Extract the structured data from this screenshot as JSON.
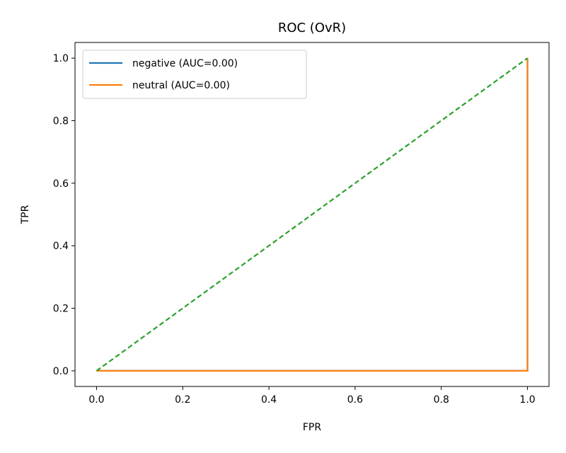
{
  "chart_data": {
    "type": "line",
    "title": "ROC (OvR)",
    "xlabel": "FPR",
    "ylabel": "TPR",
    "xlim": [
      -0.05,
      1.05
    ],
    "ylim": [
      -0.05,
      1.05
    ],
    "xticks": [
      "0.0",
      "0.2",
      "0.4",
      "0.6",
      "0.8",
      "1.0"
    ],
    "yticks": [
      "0.0",
      "0.2",
      "0.4",
      "0.6",
      "0.8",
      "1.0"
    ],
    "xtick_values": [
      0,
      0.2,
      0.4,
      0.6,
      0.8,
      1.0
    ],
    "ytick_values": [
      0,
      0.2,
      0.4,
      0.6,
      0.8,
      1.0
    ],
    "grid": false,
    "legend_position": "top-left",
    "series": [
      {
        "name": "negative (AUC=0.00)",
        "color": "#1f77b4",
        "style": "solid",
        "x": [
          0,
          1,
          1
        ],
        "y": [
          0,
          0,
          1
        ]
      },
      {
        "name": "neutral (AUC=0.00)",
        "color": "#ff7f0e",
        "style": "solid",
        "x": [
          0,
          1,
          1
        ],
        "y": [
          0,
          0,
          1
        ]
      },
      {
        "name": "",
        "color": "#2ca02c",
        "style": "dashed",
        "x": [
          0,
          1
        ],
        "y": [
          0,
          1
        ]
      }
    ]
  }
}
